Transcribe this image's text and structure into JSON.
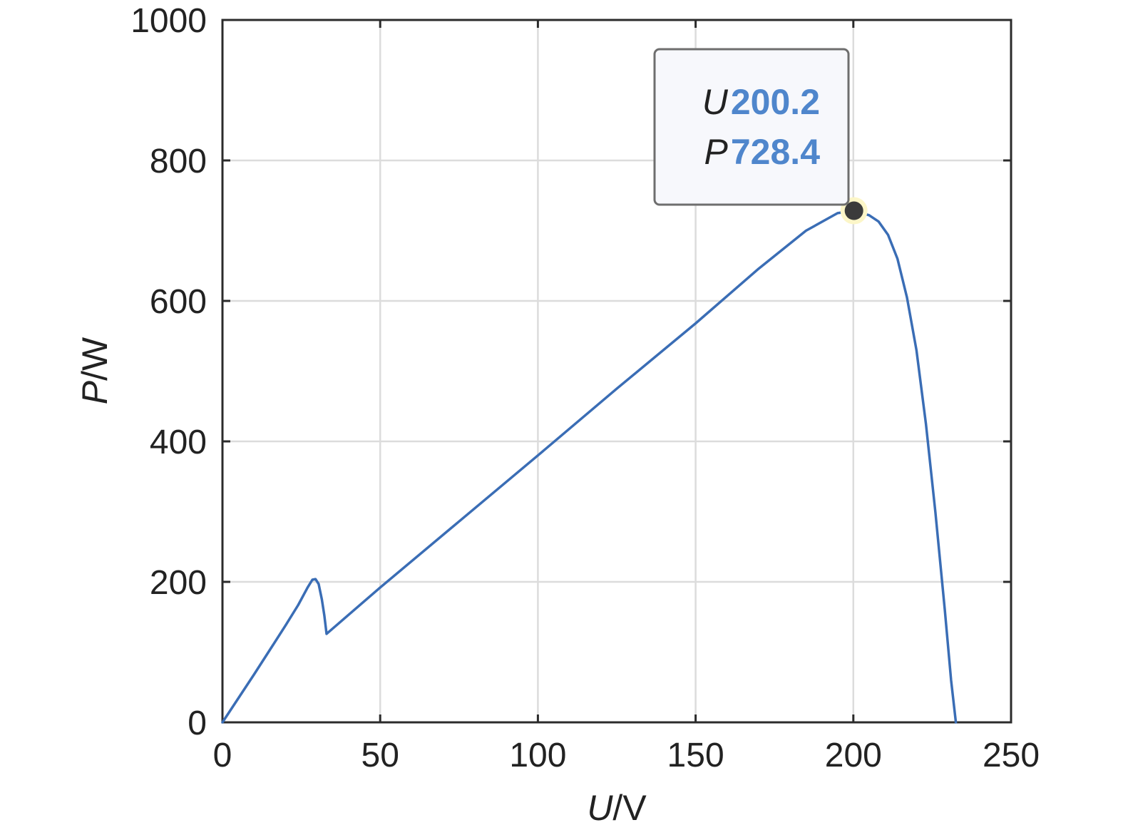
{
  "chart_data": {
    "type": "line",
    "xlabel": {
      "variable": "U",
      "unit": "/V"
    },
    "ylabel": {
      "variable": "P",
      "unit": "/W"
    },
    "xlim": [
      0,
      250
    ],
    "ylim": [
      0,
      1000
    ],
    "xticks": [
      "0",
      "50",
      "100",
      "150",
      "200",
      "250"
    ],
    "yticks": [
      "0",
      "200",
      "400",
      "600",
      "800",
      "1000"
    ],
    "grid": true,
    "series": [
      {
        "color": "#3a6db5",
        "x": [
          0,
          5,
          10,
          15,
          20,
          24,
          27,
          28.5,
          29.5,
          30.5,
          31.5,
          32.3,
          33,
          50,
          75,
          100,
          125,
          150,
          170,
          185,
          195,
          200.2,
          205,
          208,
          211,
          214,
          217,
          220,
          223,
          226,
          229,
          231,
          232.5
        ],
        "y": [
          0,
          34,
          68,
          103,
          138,
          167,
          192,
          203,
          204,
          197,
          175,
          152,
          126,
          192,
          286,
          380,
          475,
          568,
          646,
          700,
          725,
          728.4,
          722,
          713,
          694,
          660,
          605,
          530,
          425,
          300,
          160,
          60,
          0
        ]
      }
    ],
    "datatip": {
      "x_name": "U",
      "x_value": "200.2",
      "y_name": "P",
      "y_value": "728.4",
      "x": 200.2,
      "y": 728.4,
      "value_color": "#4f86cc",
      "marker_color": "#3b3b3b",
      "halo_color": "#fcf6c8"
    }
  }
}
